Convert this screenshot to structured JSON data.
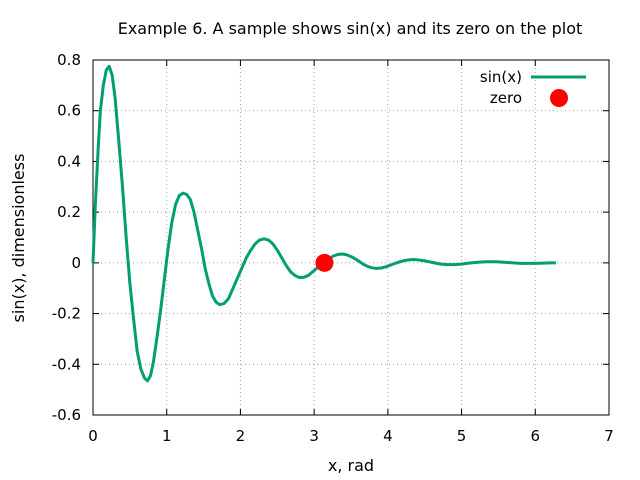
{
  "chart_data": {
    "type": "line",
    "title": "Example 6. A sample shows sin(x) and its zero on the plot",
    "xlabel": "x, rad",
    "ylabel": "sin(x), dimensionless",
    "xlim": [
      0,
      7
    ],
    "ylim": [
      -0.6,
      0.8
    ],
    "x_ticks": [
      "0",
      "1",
      "2",
      "3",
      "4",
      "5",
      "6",
      "7"
    ],
    "y_ticks": [
      "-0.6",
      "-0.4",
      "-0.2",
      "0",
      "0.2",
      "0.4",
      "0.6",
      "0.8"
    ],
    "grid": true,
    "grid_style": "dotted",
    "legend_position": "top-right",
    "series": [
      {
        "name": "sin(x)",
        "kind": "line",
        "color": "#009e73",
        "points": [
          [
            0.0,
            0.0
          ],
          [
            0.03,
            0.22
          ],
          [
            0.07,
            0.45
          ],
          [
            0.1,
            0.6
          ],
          [
            0.14,
            0.7
          ],
          [
            0.18,
            0.76
          ],
          [
            0.22,
            0.775
          ],
          [
            0.26,
            0.74
          ],
          [
            0.3,
            0.65
          ],
          [
            0.35,
            0.48
          ],
          [
            0.4,
            0.3
          ],
          [
            0.45,
            0.1
          ],
          [
            0.5,
            -0.08
          ],
          [
            0.55,
            -0.22
          ],
          [
            0.6,
            -0.35
          ],
          [
            0.65,
            -0.42
          ],
          [
            0.7,
            -0.455
          ],
          [
            0.74,
            -0.465
          ],
          [
            0.78,
            -0.445
          ],
          [
            0.82,
            -0.39
          ],
          [
            0.87,
            -0.29
          ],
          [
            0.92,
            -0.18
          ],
          [
            0.97,
            -0.06
          ],
          [
            1.02,
            0.06
          ],
          [
            1.07,
            0.16
          ],
          [
            1.12,
            0.23
          ],
          [
            1.17,
            0.265
          ],
          [
            1.22,
            0.275
          ],
          [
            1.27,
            0.27
          ],
          [
            1.32,
            0.25
          ],
          [
            1.37,
            0.2
          ],
          [
            1.42,
            0.13
          ],
          [
            1.47,
            0.06
          ],
          [
            1.52,
            -0.02
          ],
          [
            1.57,
            -0.08
          ],
          [
            1.62,
            -0.13
          ],
          [
            1.67,
            -0.155
          ],
          [
            1.72,
            -0.165
          ],
          [
            1.78,
            -0.16
          ],
          [
            1.84,
            -0.14
          ],
          [
            1.9,
            -0.1
          ],
          [
            1.96,
            -0.06
          ],
          [
            2.02,
            -0.02
          ],
          [
            2.08,
            0.02
          ],
          [
            2.14,
            0.05
          ],
          [
            2.2,
            0.075
          ],
          [
            2.26,
            0.09
          ],
          [
            2.32,
            0.095
          ],
          [
            2.38,
            0.09
          ],
          [
            2.44,
            0.075
          ],
          [
            2.5,
            0.05
          ],
          [
            2.56,
            0.02
          ],
          [
            2.62,
            -0.01
          ],
          [
            2.68,
            -0.035
          ],
          [
            2.74,
            -0.05
          ],
          [
            2.8,
            -0.058
          ],
          [
            2.86,
            -0.057
          ],
          [
            2.92,
            -0.05
          ],
          [
            2.98,
            -0.035
          ],
          [
            3.04,
            -0.02
          ],
          [
            3.1,
            -0.005
          ],
          [
            3.14,
            0.0
          ],
          [
            3.2,
            0.015
          ],
          [
            3.26,
            0.027
          ],
          [
            3.32,
            0.033
          ],
          [
            3.38,
            0.035
          ],
          [
            3.44,
            0.032
          ],
          [
            3.52,
            0.022
          ],
          [
            3.6,
            0.008
          ],
          [
            3.68,
            -0.008
          ],
          [
            3.76,
            -0.018
          ],
          [
            3.84,
            -0.022
          ],
          [
            3.92,
            -0.02
          ],
          [
            4.0,
            -0.013
          ],
          [
            4.08,
            -0.004
          ],
          [
            4.16,
            0.004
          ],
          [
            4.24,
            0.01
          ],
          [
            4.32,
            0.013
          ],
          [
            4.4,
            0.012
          ],
          [
            4.5,
            0.008
          ],
          [
            4.6,
            0.002
          ],
          [
            4.7,
            -0.004
          ],
          [
            4.8,
            -0.007
          ],
          [
            4.9,
            -0.007
          ],
          [
            5.0,
            -0.005
          ],
          [
            5.1,
            -0.001
          ],
          [
            5.2,
            0.002
          ],
          [
            5.3,
            0.004
          ],
          [
            5.4,
            0.005
          ],
          [
            5.5,
            0.004
          ],
          [
            5.6,
            0.002
          ],
          [
            5.7,
            0.0
          ],
          [
            5.8,
            -0.002
          ],
          [
            5.9,
            -0.002
          ],
          [
            6.0,
            -0.002
          ],
          [
            6.1,
            -0.001
          ],
          [
            6.2,
            0.0
          ],
          [
            6.28,
            0.0
          ]
        ]
      },
      {
        "name": "zero",
        "kind": "point",
        "color": "#ff0000",
        "points": [
          [
            3.14,
            0.0
          ]
        ]
      }
    ]
  }
}
